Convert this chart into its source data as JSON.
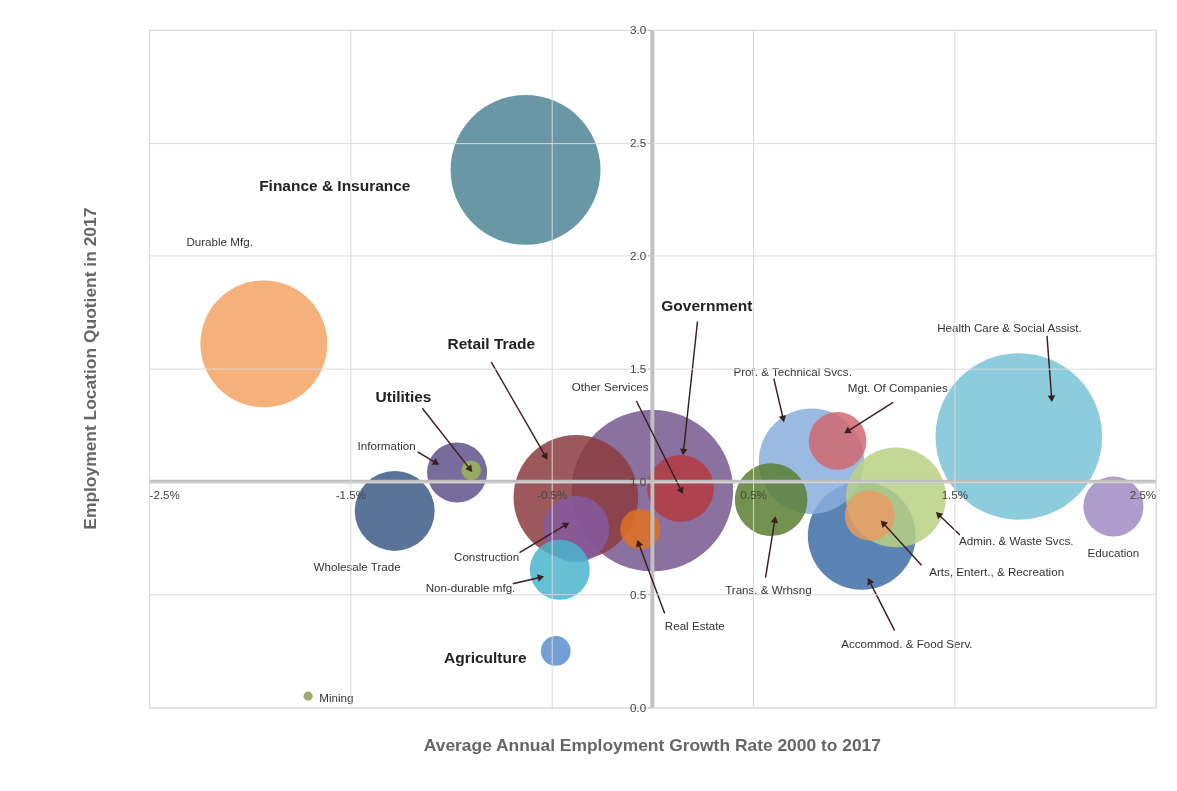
{
  "chart_data": {
    "type": "bubble",
    "xlabel": "Average Annual Employment Growth Rate 2000 to 2017",
    "ylabel": "Employment Location Quotient in 2017",
    "xlim": [
      -2.5,
      2.5
    ],
    "xticks": [
      {
        "value": -2.5,
        "label": "-2.5%"
      },
      {
        "value": -1.5,
        "label": "-1.5%"
      },
      {
        "value": -0.5,
        "label": "-0.5%"
      },
      {
        "value": 0.5,
        "label": "0.5%"
      },
      {
        "value": 1.5,
        "label": "1.5%"
      },
      {
        "value": 2.5,
        "label": "2.5%"
      }
    ],
    "ylim": [
      0,
      3
    ],
    "yticks": [
      {
        "value": 0,
        "label": "0.0"
      },
      {
        "value": 0.5,
        "label": "0.5"
      },
      {
        "value": 1,
        "label": "1.0"
      },
      {
        "value": 1.5,
        "label": "1.5"
      },
      {
        "value": 2,
        "label": "2.0"
      },
      {
        "value": 2.5,
        "label": "2.5"
      },
      {
        "value": 3,
        "label": "3.0"
      }
    ],
    "grid": true,
    "ref_lines": [
      {
        "axis": "y",
        "value": 1,
        "color": "#bfbfbf"
      },
      {
        "axis": "x",
        "value": 0,
        "color": "#bfbfbf"
      }
    ],
    "series": [
      {
        "name": "Finance & Insurance",
        "color": "#4f8597",
        "x": [
          -0.63
        ],
        "values": [
          2.38
        ],
        "sizes": [
          0.81
        ]
      },
      {
        "name": "Durable Mfg.",
        "color": "#f5a263",
        "x": [
          -1.93
        ],
        "values": [
          1.61
        ],
        "sizes": [
          0.58
        ]
      },
      {
        "name": "Information",
        "color": "#5f5289",
        "x": [
          -0.97
        ],
        "values": [
          1.04
        ],
        "sizes": [
          0.13
        ]
      },
      {
        "name": "Utilities",
        "color": "#9bb55a",
        "x": [
          -0.9
        ],
        "values": [
          1.05
        ],
        "sizes": [
          0.014
        ]
      },
      {
        "name": "Wholesale Trade",
        "color": "#3c5a87",
        "x": [
          -1.28
        ],
        "values": [
          0.87
        ],
        "sizes": [
          0.23
        ]
      },
      {
        "name": "Retail Trade",
        "color": "#8b3b3f",
        "x": [
          -0.38
        ],
        "values": [
          0.93
        ],
        "sizes": [
          0.56
        ]
      },
      {
        "name": "Government",
        "color": "#75588f",
        "x": [
          0.0
        ],
        "values": [
          0.96
        ],
        "sizes": [
          0.94
        ]
      },
      {
        "name": "Other Services",
        "color": "#b33b3f",
        "x": [
          0.14
        ],
        "values": [
          0.97
        ],
        "sizes": [
          0.16
        ]
      },
      {
        "name": "Construction",
        "color": "#85599f",
        "x": [
          -0.38
        ],
        "values": [
          0.79
        ],
        "sizes": [
          0.16
        ]
      },
      {
        "name": "Real Estate",
        "color": "#e07020",
        "x": [
          -0.06
        ],
        "values": [
          0.79
        ],
        "sizes": [
          0.058
        ]
      },
      {
        "name": "Non-durable mfg.",
        "color": "#4bb5cc",
        "x": [
          -0.46
        ],
        "values": [
          0.61
        ],
        "sizes": [
          0.13
        ]
      },
      {
        "name": "Agriculture",
        "color": "#5b8ed0",
        "x": [
          -0.48
        ],
        "values": [
          0.25
        ],
        "sizes": [
          0.032
        ]
      },
      {
        "name": "Mining",
        "color": "#8d9c55",
        "x": [
          -1.71
        ],
        "values": [
          0.05
        ],
        "sizes": [
          0.003
        ]
      },
      {
        "name": "Trans. & Wrhsng",
        "color": "#5a7f32",
        "x": [
          0.59
        ],
        "values": [
          0.92
        ],
        "sizes": [
          0.19
        ]
      },
      {
        "name": "Prof. & Technical Svcs.",
        "color": "#8aaedd",
        "x": [
          0.79
        ],
        "values": [
          1.09
        ],
        "sizes": [
          0.4
        ]
      },
      {
        "name": "Mgt. Of Companies",
        "color": "#d06870",
        "x": [
          0.92
        ],
        "values": [
          1.18
        ],
        "sizes": [
          0.12
        ]
      },
      {
        "name": "Admin. & Waste Svcs.",
        "color": "#b9d185",
        "x": [
          1.21
        ],
        "values": [
          0.93
        ],
        "sizes": [
          0.36
        ]
      },
      {
        "name": "Accommod. & Food Serv.",
        "color": "#3e6da6",
        "x": [
          1.04
        ],
        "values": [
          0.76
        ],
        "sizes": [
          0.42
        ]
      },
      {
        "name": "Arts, Entert., & Recreation",
        "color": "#e99b62",
        "x": [
          1.08
        ],
        "values": [
          0.85
        ],
        "sizes": [
          0.09
        ]
      },
      {
        "name": "Health Care & Social Assist.",
        "color": "#79c3d6",
        "x": [
          1.82
        ],
        "values": [
          1.2
        ],
        "sizes": [
          1.0
        ]
      },
      {
        "name": "Education",
        "color": "#a08bc3",
        "x": [
          2.29
        ],
        "values": [
          0.89
        ],
        "sizes": [
          0.13
        ]
      }
    ]
  }
}
